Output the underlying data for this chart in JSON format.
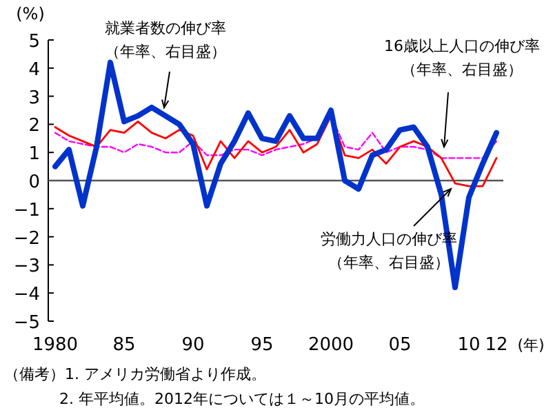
{
  "chart_data": {
    "type": "line",
    "ylabel": "(%)",
    "xlabel": "(年)",
    "x": [
      1980,
      1981,
      1982,
      1983,
      1984,
      1985,
      1986,
      1987,
      1988,
      1989,
      1990,
      1991,
      1992,
      1993,
      1994,
      1995,
      1996,
      1997,
      1998,
      1999,
      2000,
      2001,
      2002,
      2003,
      2004,
      2005,
      2006,
      2007,
      2008,
      2009,
      2010,
      2011,
      2012
    ],
    "xlim": [
      1979.5,
      2012.5
    ],
    "xticks": [
      1980,
      {
        "value": 1985,
        "label": "85"
      },
      {
        "value": 1990,
        "label": "90"
      },
      {
        "value": 1995,
        "label": "95"
      },
      2000,
      {
        "value": 2005,
        "label": "05"
      },
      {
        "value": 2010,
        "label": "10"
      },
      {
        "value": 2012,
        "label": "12"
      }
    ],
    "ylim": [
      -5,
      5
    ],
    "yticks": [
      -5,
      -4,
      -3,
      -2,
      -1,
      0,
      1,
      2,
      3,
      4,
      5
    ],
    "series": [
      {
        "color": "#0033cc",
        "values": [
          0.5,
          1.1,
          -0.9,
          1.2,
          4.2,
          2.1,
          2.3,
          2.6,
          2.3,
          2.0,
          1.3,
          -0.9,
          0.6,
          1.4,
          2.4,
          1.5,
          1.4,
          2.3,
          1.5,
          1.5,
          2.5,
          0.0,
          -0.3,
          0.9,
          1.1,
          1.8,
          1.9,
          1.2,
          -0.5,
          -3.8,
          -0.6,
          0.6,
          1.7
        ]
      },
      {
        "color": "#ff0000",
        "values": [
          1.9,
          1.6,
          1.4,
          1.2,
          1.8,
          1.7,
          2.1,
          1.7,
          1.5,
          1.8,
          1.6,
          0.4,
          1.4,
          0.8,
          1.4,
          1.0,
          1.2,
          1.8,
          1.0,
          1.3,
          2.3,
          0.9,
          0.8,
          1.1,
          0.6,
          1.2,
          1.4,
          1.2,
          0.8,
          -0.1,
          -0.2,
          -0.2,
          0.8
        ]
      },
      {
        "color": "#ff00ff",
        "line_style": "dashed",
        "values": [
          1.7,
          1.4,
          1.3,
          1.2,
          1.2,
          1.0,
          1.3,
          1.2,
          1.0,
          1.0,
          1.4,
          0.9,
          0.9,
          1.1,
          1.1,
          0.9,
          1.1,
          1.2,
          1.3,
          1.5,
          2.3,
          1.2,
          1.1,
          1.7,
          1.0,
          1.2,
          1.2,
          1.1,
          0.8,
          0.8,
          0.8,
          0.8,
          1.4
        ]
      }
    ],
    "ref_lines": [
      {
        "axis": "y",
        "value": 0,
        "color": "#555555"
      }
    ],
    "grid": false,
    "marker": "none",
    "annotations": [
      {
        "text": "就業者数の伸び率（年率、右目盛）",
        "x": 1988,
        "y": 2.3
      },
      {
        "text": "16歳以上人口の伸び率（年率、右目盛）",
        "x": 2008,
        "y": 0.9
      },
      {
        "text": "労働力人口の伸び率（年率、右目盛）",
        "x": 2009,
        "y": -0.1
      },
      "（備考）1. アメリカ労働省より作成。",
      "2. 年平均値。2012年については１～10月の平均値。"
    ]
  }
}
